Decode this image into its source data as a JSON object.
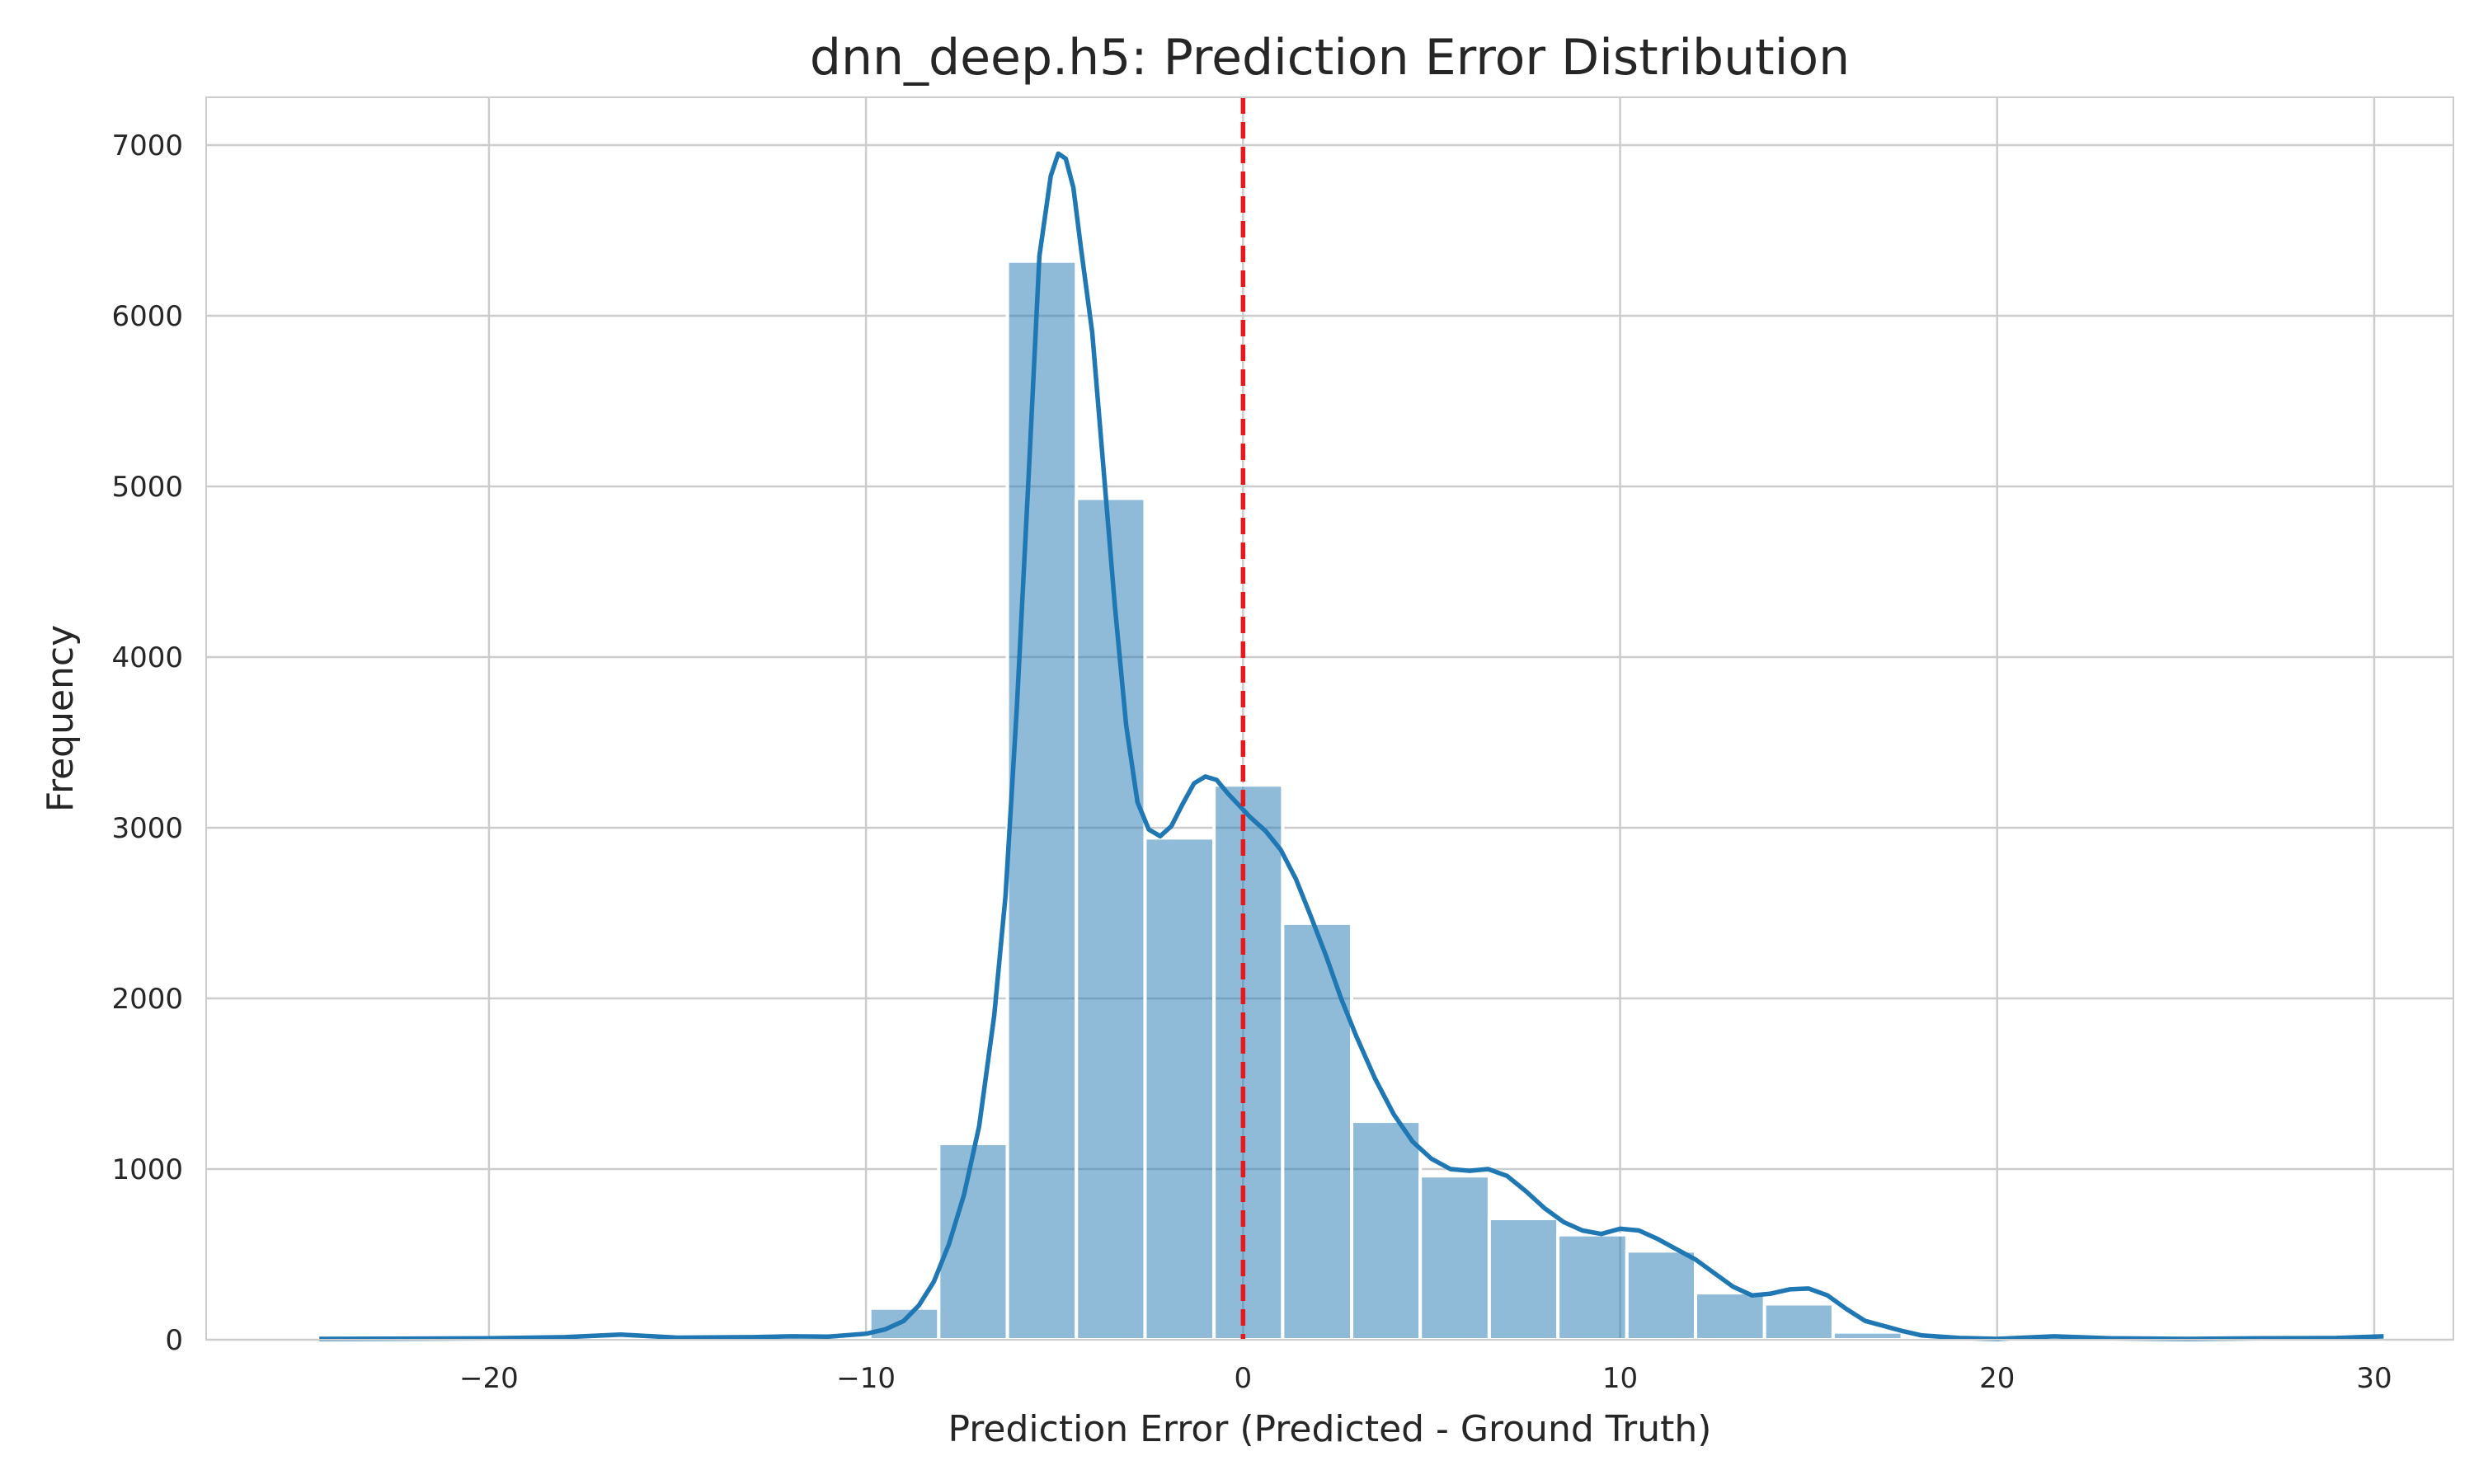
{
  "chart_data": {
    "type": "bar",
    "title": "dnn_deep.h5: Prediction Error Distribution",
    "xlabel": "Prediction Error (Predicted - Ground Truth)",
    "ylabel": "Frequency",
    "xlim": [
      -27.5,
      32.1
    ],
    "ylim": [
      0,
      7280
    ],
    "xticks": [
      -20,
      -10,
      0,
      10,
      20,
      30
    ],
    "xtick_labels": [
      "−20",
      "−10",
      "0",
      "10",
      "20",
      "30"
    ],
    "yticks": [
      0,
      1000,
      2000,
      3000,
      4000,
      5000,
      6000,
      7000
    ],
    "ytick_labels": [
      "0",
      "1000",
      "2000",
      "3000",
      "4000",
      "5000",
      "6000",
      "7000"
    ],
    "grid": true,
    "histogram": {
      "bin_edges": [
        -24.5,
        -22.67,
        -20.85,
        -19.02,
        -17.2,
        -15.37,
        -13.55,
        -11.72,
        -9.9,
        -8.07,
        -6.25,
        -4.42,
        -2.6,
        -0.77,
        1.05,
        2.88,
        4.7,
        6.53,
        8.35,
        10.18,
        12.0,
        13.83,
        15.65,
        17.48,
        19.3,
        21.13,
        22.95,
        24.78,
        26.6,
        28.43,
        30.25
      ],
      "counts": [
        5,
        3,
        2,
        8,
        20,
        12,
        8,
        15,
        185,
        1150,
        6320,
        4930,
        2940,
        3250,
        2440,
        1280,
        960,
        710,
        615,
        520,
        275,
        210,
        45,
        5,
        3,
        10,
        3,
        2,
        3,
        10
      ],
      "color": "#1f77b4",
      "fill_opacity": 0.5
    },
    "kde": {
      "x": [
        -24.5,
        -20,
        -18,
        -16.5,
        -15,
        -13,
        -12,
        -11,
        -10,
        -9.5,
        -9,
        -8.6,
        -8.2,
        -7.8,
        -7.4,
        -7.0,
        -6.6,
        -6.3,
        -6.0,
        -5.7,
        -5.4,
        -5.1,
        -4.9,
        -4.7,
        -4.5,
        -4.3,
        -4.0,
        -3.7,
        -3.4,
        -3.1,
        -2.8,
        -2.5,
        -2.2,
        -1.9,
        -1.6,
        -1.3,
        -1.0,
        -0.7,
        -0.4,
        -0.1,
        0.2,
        0.6,
        1.0,
        1.4,
        1.8,
        2.2,
        2.6,
        3.0,
        3.5,
        4.0,
        4.5,
        5.0,
        5.5,
        6.0,
        6.5,
        7.0,
        7.5,
        8.0,
        8.5,
        9.0,
        9.5,
        10.0,
        10.5,
        11.0,
        11.5,
        12.0,
        12.5,
        13.0,
        13.5,
        14.0,
        14.5,
        15.0,
        15.5,
        16.0,
        16.5,
        17.0,
        17.5,
        18.0,
        19.0,
        20.0,
        21.5,
        23.0,
        25.0,
        27.0,
        29.0,
        30.25
      ],
      "y": [
        5,
        8,
        15,
        30,
        12,
        15,
        20,
        18,
        35,
        60,
        110,
        200,
        340,
        560,
        850,
        1250,
        1900,
        2600,
        3700,
        5000,
        6350,
        6820,
        6950,
        6920,
        6750,
        6400,
        5900,
        5100,
        4300,
        3600,
        3150,
        2990,
        2950,
        3010,
        3140,
        3260,
        3300,
        3280,
        3200,
        3130,
        3060,
        2980,
        2870,
        2700,
        2480,
        2250,
        2000,
        1780,
        1530,
        1320,
        1160,
        1060,
        1000,
        990,
        1000,
        960,
        870,
        770,
        690,
        640,
        620,
        650,
        640,
        590,
        530,
        470,
        390,
        310,
        260,
        270,
        295,
        300,
        260,
        180,
        110,
        80,
        50,
        25,
        10,
        5,
        20,
        8,
        5,
        8,
        10,
        20
      ],
      "color": "#1f77b4"
    },
    "reference_line": {
      "x": 0,
      "color": "#e41a1c",
      "style": "dashed"
    }
  }
}
